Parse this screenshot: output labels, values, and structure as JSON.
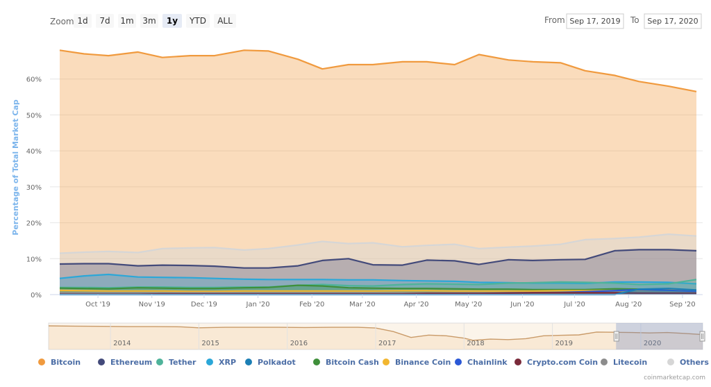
{
  "toolbar": {
    "zoom_label": "Zoom",
    "buttons": [
      "1d",
      "7d",
      "1m",
      "3m",
      "1y",
      "YTD",
      "ALL"
    ],
    "active_button": "1y",
    "from_label": "From",
    "from_date": "Sep 17, 2019",
    "to_label": "To",
    "to_date": "Sep 17, 2020"
  },
  "credit": "coinmarketcap.com",
  "colors": {
    "Bitcoin": "#f09a3e",
    "Ethereum": "#434a7a",
    "Tether": "#4fb39a",
    "XRP": "#2ba7d8",
    "Polkadot": "#1c7fb5",
    "Bitcoin Cash": "#3f8f3a",
    "Binance Coin": "#f2b630",
    "Chainlink": "#2b58d6",
    "Crypto.com Coin": "#7a2a3a",
    "Litecoin": "#8c8c8c",
    "Others": "#d6d6d6"
  },
  "chart_data": {
    "type": "area",
    "stacking": "percent_share",
    "ylabel": "Percentage of Total Market Cap",
    "xlabel": "",
    "ylim": [
      0,
      70
    ],
    "yticks": [
      0,
      10,
      20,
      30,
      40,
      50,
      60
    ],
    "ytick_labels": [
      "0%",
      "10%",
      "20%",
      "30%",
      "40%",
      "50%",
      "60%"
    ],
    "xticks": [
      "Oct '19",
      "Nov '19",
      "Dec '19",
      "Jan '20",
      "Feb '20",
      "Mar '20",
      "Apr '20",
      "May '20",
      "Jun '20",
      "Jul '20",
      "Aug '20",
      "Sep '20"
    ],
    "x": [
      "2019-09-17",
      "2019-10-01",
      "2019-10-15",
      "2019-11-01",
      "2019-11-15",
      "2019-12-01",
      "2019-12-15",
      "2020-01-01",
      "2020-01-15",
      "2020-02-01",
      "2020-02-15",
      "2020-03-01",
      "2020-03-15",
      "2020-04-01",
      "2020-04-15",
      "2020-05-01",
      "2020-05-15",
      "2020-06-01",
      "2020-06-15",
      "2020-07-01",
      "2020-07-15",
      "2020-08-01",
      "2020-08-15",
      "2020-09-01",
      "2020-09-17"
    ],
    "series": [
      {
        "name": "Bitcoin",
        "values": [
          68,
          67,
          66.5,
          67.5,
          66,
          66.5,
          66.5,
          68,
          67.8,
          65.5,
          62.8,
          64,
          64,
          64.8,
          64.8,
          64,
          66.8,
          65.3,
          64.8,
          64.5,
          62.3,
          61,
          59.3,
          58,
          56.5
        ]
      },
      {
        "name": "Ethereum",
        "values": [
          8.5,
          8.6,
          8.6,
          8,
          8.2,
          8.1,
          7.9,
          7.4,
          7.4,
          8,
          9.5,
          10,
          8.3,
          8.2,
          9.6,
          9.4,
          8.4,
          9.7,
          9.5,
          9.7,
          9.8,
          12.2,
          12.5,
          12.5,
          12.2
        ]
      },
      {
        "name": "Tether",
        "values": [
          2,
          2,
          1.9,
          2.1,
          2.1,
          2,
          2,
          2.1,
          2.1,
          2.6,
          2.8,
          2.5,
          2.4,
          2.8,
          3,
          2.9,
          2.8,
          3.2,
          3.3,
          3.5,
          3.4,
          3.2,
          2.8,
          3,
          4.2
        ]
      },
      {
        "name": "XRP",
        "values": [
          4.5,
          5.2,
          5.6,
          4.9,
          4.8,
          4.7,
          4.5,
          4.3,
          4.2,
          4.2,
          4.2,
          4.1,
          4.1,
          3.9,
          3.8,
          3.7,
          3.4,
          3.3,
          3.2,
          3.2,
          3.1,
          3.5,
          3.5,
          3.4,
          3
        ]
      },
      {
        "name": "Polkadot",
        "values": [
          0,
          0,
          0,
          0,
          0,
          0,
          0,
          0,
          0,
          0,
          0,
          0,
          0,
          0,
          0,
          0,
          0,
          0,
          0,
          0,
          0,
          0,
          1.5,
          1.7,
          1.3
        ]
      },
      {
        "name": "Bitcoin Cash",
        "values": [
          1.8,
          1.7,
          1.6,
          1.9,
          1.8,
          1.7,
          1.7,
          1.9,
          2,
          2.6,
          2.4,
          1.9,
          1.8,
          1.7,
          1.7,
          1.6,
          1.5,
          1.5,
          1.4,
          1.4,
          1.4,
          1.6,
          1.5,
          1.4,
          1.2
        ]
      },
      {
        "name": "Binance Coin",
        "values": [
          1.2,
          1.1,
          1,
          1,
          1,
          0.9,
          0.9,
          1,
          1,
          1,
          1,
          1,
          1,
          1.1,
          1.1,
          1,
          1,
          1,
          1,
          1.1,
          1.1,
          1.1,
          1.2,
          1.3,
          1.3
        ]
      },
      {
        "name": "Chainlink",
        "values": [
          0.3,
          0.3,
          0.3,
          0.3,
          0.3,
          0.3,
          0.3,
          0.3,
          0.3,
          0.3,
          0.3,
          0.3,
          0.3,
          0.4,
          0.4,
          0.4,
          0.4,
          0.5,
          0.5,
          0.6,
          0.8,
          1.1,
          1.4,
          1.2,
          0.9
        ]
      },
      {
        "name": "Crypto.com Coin",
        "values": [
          0.1,
          0.1,
          0.1,
          0.1,
          0.2,
          0.2,
          0.2,
          0.2,
          0.2,
          0.2,
          0.2,
          0.2,
          0.2,
          0.2,
          0.3,
          0.3,
          0.3,
          0.4,
          0.5,
          0.5,
          0.5,
          0.5,
          0.4,
          0.4,
          0.4
        ]
      },
      {
        "name": "Litecoin",
        "values": [
          0.5,
          0.5,
          0.5,
          0.5,
          0.5,
          0.5,
          0.5,
          0.5,
          0.5,
          0.5,
          0.5,
          0.5,
          0.5,
          0.5,
          0.5,
          0.5,
          0.5,
          0.5,
          0.5,
          0.5,
          0.5,
          0.5,
          0.5,
          0.5,
          0.5
        ]
      },
      {
        "name": "Others",
        "values": [
          11.5,
          11.8,
          12,
          11.7,
          12.8,
          13,
          13.1,
          12.4,
          12.8,
          13.8,
          14.8,
          14.2,
          14.4,
          13.3,
          13.7,
          14,
          12.8,
          13.2,
          13.5,
          14,
          15.3,
          15.6,
          16,
          16.8,
          16.3
        ]
      }
    ],
    "navigator": {
      "xticks": [
        "2014",
        "2015",
        "2016",
        "2017",
        "2018",
        "2019",
        "2020"
      ],
      "x": [
        2013.3,
        2013.6,
        2013.9,
        2014.2,
        2014.5,
        2014.8,
        2015.0,
        2015.3,
        2015.6,
        2015.9,
        2016.2,
        2016.5,
        2016.8,
        2017.0,
        2017.2,
        2017.4,
        2017.6,
        2017.8,
        2018.0,
        2018.1,
        2018.3,
        2018.5,
        2018.7,
        2018.9,
        2019.1,
        2019.3,
        2019.5,
        2019.7,
        2019.9,
        2020.1,
        2020.3,
        2020.5,
        2020.7
      ],
      "values": [
        94,
        93,
        92,
        91,
        91,
        90,
        86,
        88,
        88,
        88,
        87,
        88,
        88,
        85,
        70,
        45,
        55,
        52,
        42,
        33,
        38,
        36,
        40,
        52,
        54,
        56,
        68,
        67,
        66,
        64,
        66,
        62,
        57
      ]
    }
  }
}
